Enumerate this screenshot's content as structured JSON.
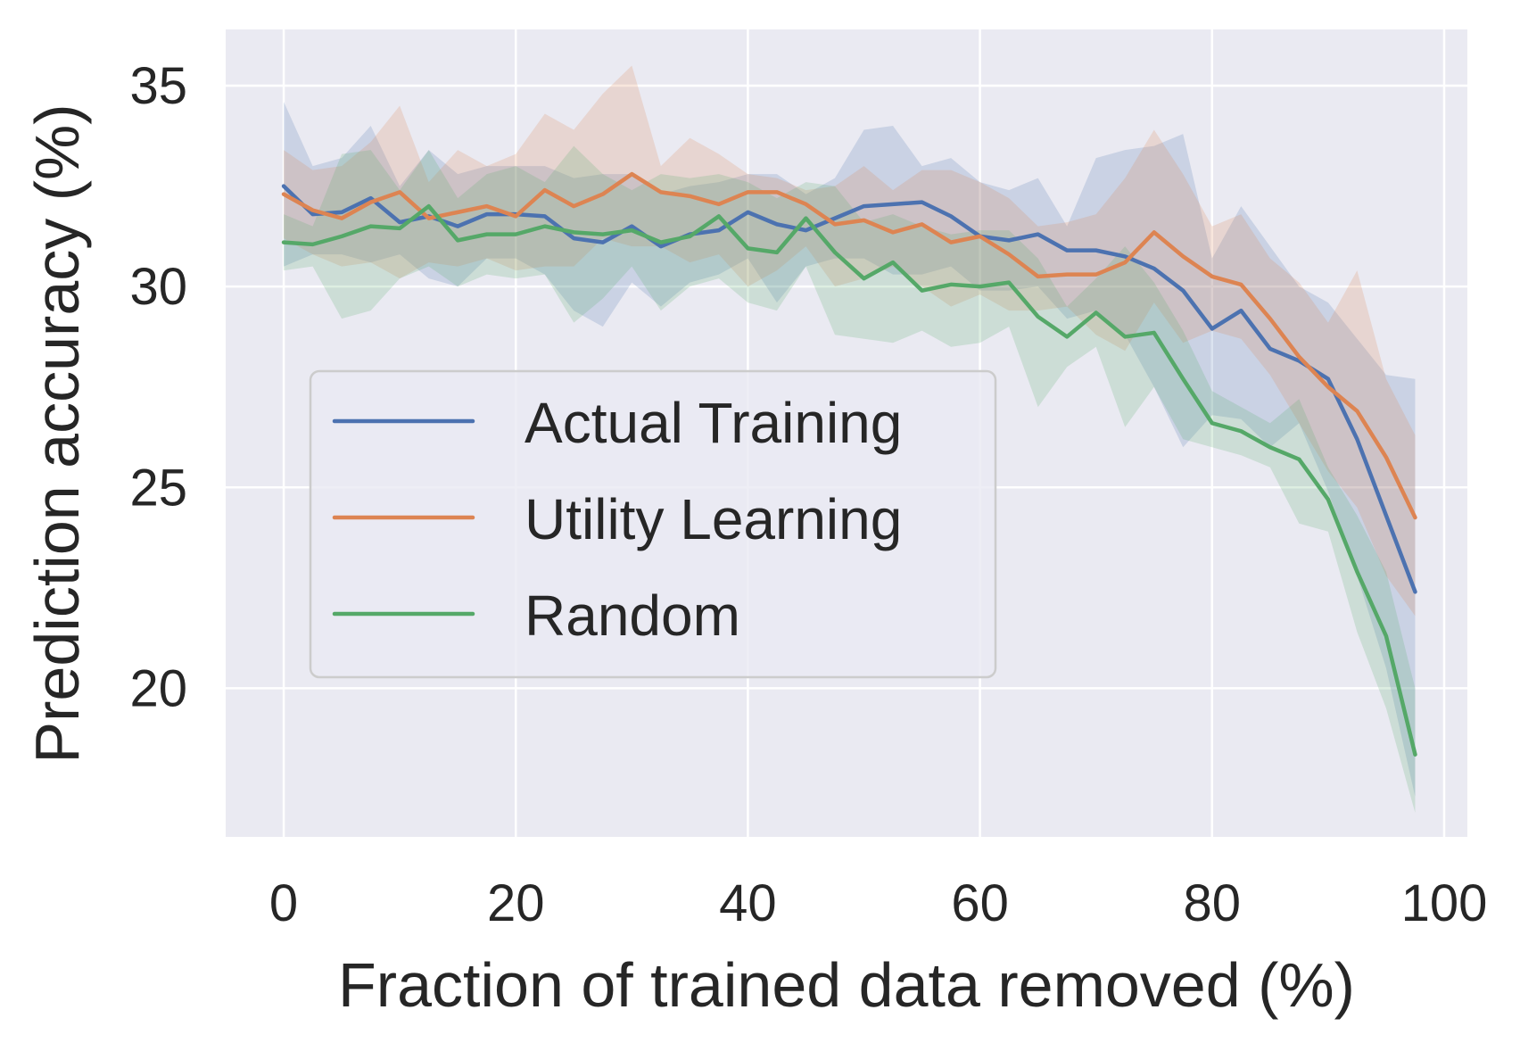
{
  "chart_data": {
    "type": "line",
    "title": "",
    "xlabel": "Fraction of trained data removed (%)",
    "ylabel": "Prediction accuracy (%)",
    "xlim": [
      -5,
      102
    ],
    "ylim": [
      16.3,
      36.4
    ],
    "xticks": [
      0,
      20,
      40,
      60,
      80,
      100
    ],
    "yticks": [
      20,
      25,
      30,
      35
    ],
    "grid": true,
    "legend_position": "center-left",
    "x": [
      0,
      2.5,
      5,
      7.5,
      10,
      12.5,
      15,
      17.5,
      20,
      22.5,
      25,
      27.5,
      30,
      32.5,
      35,
      37.5,
      40,
      42.5,
      45,
      47.5,
      50,
      52.5,
      55,
      57.5,
      60,
      62.5,
      65,
      67.5,
      70,
      72.5,
      75,
      77.5,
      80,
      82.5,
      85,
      87.5,
      90,
      92.5,
      95,
      97.5
    ],
    "series": [
      {
        "name": "Actual Training",
        "color": "#4c72b0",
        "values": [
          32.5,
          31.8,
          31.85,
          32.2,
          31.6,
          31.75,
          31.5,
          31.8,
          31.8,
          31.75,
          31.2,
          31.1,
          31.5,
          31.0,
          31.3,
          31.4,
          31.85,
          31.55,
          31.4,
          31.7,
          32.0,
          32.05,
          32.1,
          31.75,
          31.25,
          31.15,
          31.3,
          30.9,
          30.9,
          30.75,
          30.45,
          29.9,
          28.95,
          29.4,
          28.45,
          28.15,
          27.7,
          26.2,
          24.3,
          22.4
        ],
        "lower": [
          30.5,
          30.8,
          30.8,
          30.6,
          30.8,
          30.2,
          30.0,
          30.7,
          30.7,
          30.3,
          29.4,
          29.0,
          30.1,
          29.5,
          30.1,
          30.3,
          30.7,
          29.6,
          30.5,
          30.7,
          30.7,
          30.3,
          30.3,
          30.5,
          29.9,
          29.9,
          30.0,
          29.2,
          29.4,
          28.8,
          27.5,
          26.0,
          26.8,
          26.7,
          26.0,
          26.6,
          24.9,
          22.8,
          20.5,
          17.3
        ],
        "upper": [
          34.6,
          33.0,
          33.2,
          34.0,
          32.5,
          33.4,
          32.8,
          33.0,
          33.0,
          33.0,
          32.7,
          32.8,
          32.8,
          32.3,
          32.5,
          32.6,
          32.8,
          32.8,
          32.3,
          32.7,
          33.9,
          34.0,
          33.0,
          33.2,
          32.6,
          32.4,
          32.7,
          31.5,
          33.2,
          33.4,
          33.5,
          33.8,
          30.7,
          32.0,
          31.0,
          30.0,
          29.6,
          28.7,
          27.8,
          27.7
        ]
      },
      {
        "name": "Utility Learning",
        "color": "#dd8452",
        "values": [
          32.3,
          31.9,
          31.7,
          32.1,
          32.35,
          31.7,
          31.85,
          32.0,
          31.75,
          32.4,
          32.0,
          32.3,
          32.8,
          32.35,
          32.25,
          32.05,
          32.35,
          32.35,
          32.05,
          31.55,
          31.65,
          31.35,
          31.55,
          31.1,
          31.25,
          30.8,
          30.25,
          30.3,
          30.3,
          30.6,
          31.35,
          30.75,
          30.25,
          30.05,
          29.2,
          28.25,
          27.5,
          26.9,
          25.75,
          24.25
        ],
        "lower": [
          31.2,
          30.8,
          30.5,
          30.6,
          30.2,
          30.6,
          30.5,
          30.7,
          30.4,
          30.5,
          30.5,
          31.2,
          31.0,
          31.0,
          30.6,
          30.8,
          30.0,
          30.4,
          31.0,
          30.0,
          30.2,
          30.5,
          30.0,
          29.5,
          29.8,
          29.4,
          29.4,
          29.5,
          28.8,
          28.4,
          29.6,
          28.6,
          28.9,
          28.7,
          27.8,
          26.6,
          25.4,
          24.5,
          22.8,
          21.8
        ],
        "upper": [
          33.4,
          32.9,
          33.0,
          33.6,
          34.5,
          32.6,
          33.4,
          33.0,
          33.3,
          34.3,
          33.9,
          34.8,
          35.5,
          33.0,
          33.7,
          33.3,
          32.8,
          32.7,
          32.4,
          32.5,
          33.0,
          32.4,
          32.9,
          32.9,
          32.6,
          32.2,
          31.5,
          31.6,
          31.8,
          32.7,
          33.9,
          32.8,
          31.5,
          31.8,
          30.7,
          30.1,
          29.1,
          30.4,
          27.7,
          26.3
        ]
      },
      {
        "name": "Random",
        "color": "#55a868",
        "values": [
          31.1,
          31.05,
          31.25,
          31.5,
          31.45,
          32.0,
          31.15,
          31.3,
          31.3,
          31.5,
          31.35,
          31.3,
          31.4,
          31.1,
          31.25,
          31.75,
          30.95,
          30.85,
          31.7,
          30.85,
          30.2,
          30.6,
          29.9,
          30.05,
          30.0,
          30.1,
          29.25,
          28.75,
          29.35,
          28.75,
          28.85,
          27.7,
          26.6,
          26.4,
          26.0,
          25.7,
          24.7,
          22.9,
          21.3,
          18.35
        ],
        "lower": [
          30.4,
          30.5,
          29.2,
          29.4,
          30.2,
          30.5,
          30.0,
          30.3,
          30.2,
          30.3,
          29.1,
          29.7,
          30.5,
          29.4,
          30.0,
          30.2,
          29.6,
          29.4,
          30.5,
          28.8,
          28.7,
          28.6,
          28.9,
          28.5,
          28.6,
          29.0,
          27.0,
          28.0,
          28.5,
          26.5,
          27.5,
          26.2,
          26.0,
          25.8,
          25.5,
          24.1,
          23.9,
          21.4,
          19.5,
          16.9
        ],
        "upper": [
          31.8,
          31.5,
          33.3,
          33.4,
          32.4,
          33.4,
          32.2,
          32.8,
          33.0,
          32.6,
          33.5,
          32.8,
          32.4,
          32.8,
          32.7,
          32.8,
          32.6,
          32.2,
          32.6,
          32.5,
          31.6,
          31.8,
          31.5,
          31.3,
          31.4,
          31.4,
          30.7,
          29.5,
          30.2,
          31.0,
          30.1,
          28.9,
          27.4,
          27.0,
          26.6,
          27.2,
          25.5,
          24.3,
          22.9,
          20.0
        ]
      }
    ]
  }
}
